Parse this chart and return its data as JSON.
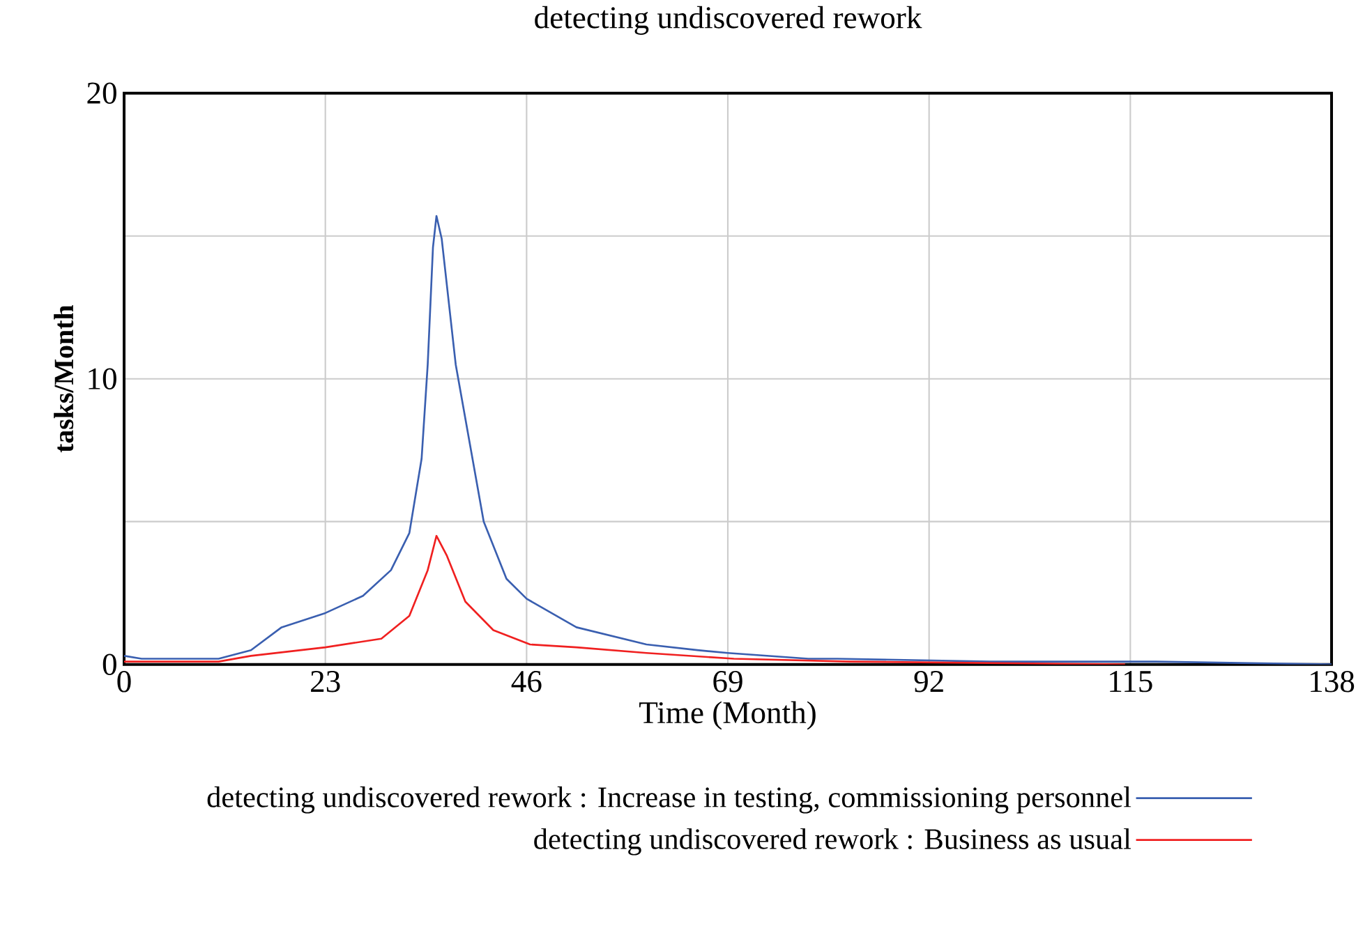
{
  "chart_data": {
    "type": "line",
    "title": "detecting undiscovered rework",
    "xlabel": "Time (Month)",
    "ylabel": "tasks/Month",
    "xlim": [
      0,
      138
    ],
    "ylim": [
      0,
      20
    ],
    "xticks": [
      0,
      23,
      46,
      69,
      92,
      115,
      138
    ],
    "yticks": [
      0,
      {
        "value": 5,
        "label": null
      },
      10,
      {
        "value": 15,
        "label": null
      },
      20
    ],
    "grid": true,
    "legend": "bottom",
    "line_style": "solid",
    "marker": "none",
    "series": [
      {
        "name": "detecting undiscovered rework : Increase in testing, commissioning personnel",
        "color": "#3a5fb0",
        "x": [
          0,
          2,
          10.8,
          14.5,
          18,
          23,
          27.3,
          30.5,
          32.6,
          34,
          34.7,
          35.3,
          35.7,
          36.3,
          37.9,
          41.1,
          43.7,
          46,
          51.7,
          59.7,
          65.5,
          69,
          78.2,
          81.5,
          99,
          117.9,
          138
        ],
        "values": [
          0.3,
          0.2,
          0.2,
          0.5,
          1.3,
          1.8,
          2.4,
          3.3,
          4.6,
          7.2,
          10.5,
          14.6,
          15.7,
          14.9,
          10.5,
          5.0,
          3.0,
          2.3,
          1.3,
          0.7,
          0.5,
          0.4,
          0.2,
          0.2,
          0.1,
          0.1,
          0.0
        ]
      },
      {
        "name": "detecting undiscovered rework : Business as usual",
        "color": "#f02020",
        "x": [
          0,
          10.8,
          14.5,
          23,
          29.4,
          32.6,
          34.7,
          35.7,
          36.9,
          39,
          42.2,
          46.4,
          51.7,
          59.7,
          69.7,
          83,
          114.4
        ],
        "values": [
          0.1,
          0.1,
          0.3,
          0.6,
          0.9,
          1.7,
          3.3,
          4.5,
          3.8,
          2.2,
          1.2,
          0.7,
          0.6,
          0.4,
          0.2,
          0.1,
          0.0
        ]
      }
    ]
  }
}
